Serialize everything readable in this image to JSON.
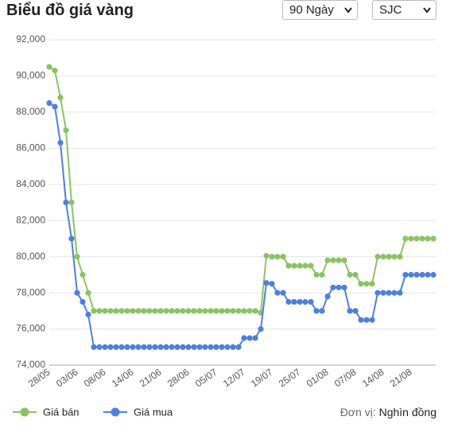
{
  "header": {
    "title": "Biểu đồ giá vàng",
    "period": "90 Ngày",
    "brand": "SJC"
  },
  "chart_data": {
    "type": "line",
    "categories": [
      "28/05",
      null,
      null,
      null,
      null,
      "03/06",
      null,
      null,
      null,
      null,
      "08/06",
      null,
      null,
      null,
      null,
      "14/06",
      null,
      null,
      null,
      null,
      "21/06",
      null,
      null,
      null,
      null,
      "28/06",
      null,
      null,
      null,
      null,
      "05/07",
      null,
      null,
      null,
      null,
      "12/07",
      null,
      null,
      null,
      null,
      "19/07",
      null,
      null,
      null,
      null,
      "25/07",
      null,
      null,
      null,
      null,
      "01/08",
      null,
      null,
      null,
      null,
      "07/08",
      null,
      null,
      null,
      null,
      "14/08",
      null,
      null,
      null,
      null,
      "21/08",
      null,
      null,
      null,
      null
    ],
    "series": [
      {
        "name": "Giá bán",
        "color": "#8cc265",
        "values": [
          90500,
          90300,
          88800,
          87000,
          83000,
          80000,
          79000,
          78000,
          77000,
          77000,
          77000,
          77000,
          77000,
          77000,
          77000,
          77000,
          77000,
          77000,
          77000,
          77000,
          77000,
          77000,
          77000,
          77000,
          77000,
          77000,
          77000,
          77000,
          77000,
          77000,
          77000,
          77000,
          77000,
          77000,
          77000,
          77000,
          77000,
          77000,
          76900,
          80050,
          80000,
          80000,
          80000,
          79500,
          79500,
          79500,
          79500,
          79500,
          79000,
          79000,
          79800,
          79800,
          79800,
          79800,
          79000,
          79000,
          78500,
          78500,
          78500,
          80000,
          80000,
          80000,
          80000,
          80000,
          81000,
          81000,
          81000,
          81000,
          81000,
          81000
        ]
      },
      {
        "name": "Giá mua",
        "color": "#4f7fdc",
        "values": [
          88500,
          88300,
          86300,
          83000,
          81000,
          78000,
          77500,
          76800,
          75000,
          75000,
          75000,
          75000,
          75000,
          75000,
          75000,
          75000,
          75000,
          75000,
          75000,
          75000,
          75000,
          75000,
          75000,
          75000,
          75000,
          75000,
          75000,
          75000,
          75000,
          75000,
          75000,
          75000,
          75000,
          75000,
          75000,
          75500,
          75500,
          75500,
          76000,
          78550,
          78500,
          78000,
          78000,
          77500,
          77500,
          77500,
          77500,
          77500,
          77000,
          77000,
          77800,
          78300,
          78300,
          78300,
          77000,
          77000,
          76500,
          76500,
          76500,
          78000,
          78000,
          78000,
          78000,
          78000,
          79000,
          79000,
          79000,
          79000,
          79000,
          79000
        ]
      }
    ],
    "ylim": [
      74000,
      92000
    ],
    "yticks": [
      {
        "value": 74000,
        "label": "74,000"
      },
      {
        "value": 76000,
        "label": "76,000"
      },
      {
        "value": 78000,
        "label": "78,000"
      },
      {
        "value": 80000,
        "label": "80,000"
      },
      {
        "value": 82000,
        "label": "82,000"
      },
      {
        "value": 84000,
        "label": "84,000"
      },
      {
        "value": 86000,
        "label": "86,000"
      },
      {
        "value": 88000,
        "label": "88,000"
      },
      {
        "value": 90000,
        "label": "90,000"
      },
      {
        "value": 92000,
        "label": "92,000"
      }
    ],
    "grid": true,
    "unit_label": "Đơn vị:",
    "unit": "Nghìn đồng"
  }
}
